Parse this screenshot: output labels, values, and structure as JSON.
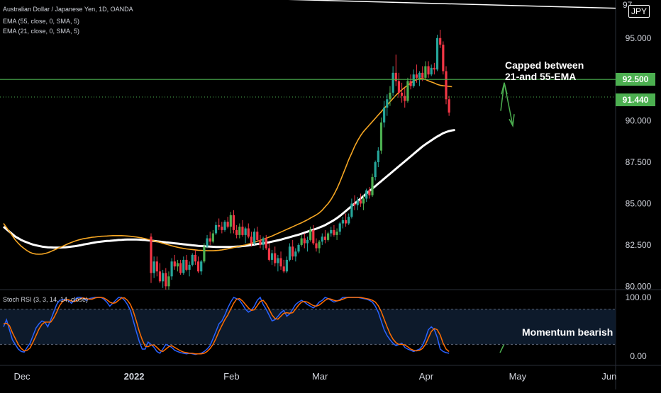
{
  "legend": {
    "main": "Australian Dollar / Japanese Yen, 1D, OANDA",
    "ema55": "EMA (55, close, 0, SMA, 5)",
    "ema21": "EMA (21, close, 0, SMA, 5)",
    "rsi": "Stoch RSI (3, 3, 14, 14, close)"
  },
  "currency_label": "JPY",
  "annotations": {
    "capped_line1": "Capped between",
    "capped_line2": "21-and 55-EMA",
    "momentum": "Momentum bearish"
  },
  "price_tags": {
    "resistance": "92.500",
    "last": "91.440"
  },
  "colors": {
    "up": "#26a69a",
    "up_alt": "#4caf50",
    "down": "#f23645",
    "ema21": "#f5a623",
    "ema55": "#ffffff",
    "rsi_k": "#2962ff",
    "rsi_d": "#ff6d00",
    "resistance": "#4caf50",
    "arrow": "#4caf50"
  },
  "chart_data": {
    "type": "candlestick",
    "price_axis": {
      "ticks": [
        "80.000",
        "82.500",
        "85.000",
        "87.500",
        "90.000",
        "92.500",
        "95.000"
      ],
      "top_partial_label": "97",
      "ylim": [
        79.8,
        97.3
      ]
    },
    "time_axis": {
      "ticks": [
        {
          "label": "Dec",
          "bar": 0
        },
        {
          "label": "2022",
          "bar": 38
        },
        {
          "label": "Feb",
          "bar": 71
        },
        {
          "label": "Mar",
          "bar": 101
        },
        {
          "label": "Apr",
          "bar": 137
        },
        {
          "label": "May",
          "bar": 168
        },
        {
          "label": "Jun",
          "bar": 199
        }
      ]
    },
    "series": [
      {
        "name": "EMA (55, close, 0, SMA, 5)",
        "color": "#ffffff",
        "values": [
          83.6,
          83.45,
          83.3,
          83.15,
          83.0,
          82.9,
          82.8,
          82.72,
          82.65,
          82.58,
          82.52,
          82.48,
          82.44,
          82.4,
          82.38,
          82.36,
          82.35,
          82.34,
          82.34,
          82.34,
          82.35,
          82.36,
          82.38,
          82.4,
          82.42,
          82.45,
          82.48,
          82.52,
          82.55,
          82.58,
          82.62,
          82.65,
          82.68,
          82.7,
          82.72,
          82.74,
          82.75,
          82.76,
          82.78,
          82.8,
          82.81,
          82.82,
          82.83,
          82.83,
          82.83,
          82.83,
          82.82,
          82.81,
          82.8,
          82.78,
          82.76,
          82.74,
          82.72,
          82.7,
          82.68,
          82.66,
          82.64,
          82.62,
          82.6,
          82.58,
          82.56,
          82.54,
          82.52,
          82.5,
          82.48,
          82.46,
          82.44,
          82.43,
          82.42,
          82.41,
          82.4,
          82.39,
          82.38,
          82.38,
          82.38,
          82.38,
          82.38,
          82.38,
          82.39,
          82.4,
          82.41,
          82.43,
          82.45,
          82.47,
          82.5,
          82.52,
          82.55,
          82.58,
          82.6,
          82.63,
          82.66,
          82.7,
          82.74,
          82.78,
          82.82,
          82.87,
          82.92,
          82.97,
          83.02,
          83.07,
          83.12,
          83.18,
          83.24,
          83.3,
          83.36,
          83.42,
          83.48,
          83.55,
          83.62,
          83.7,
          83.8,
          83.9,
          84.0,
          84.12,
          84.25,
          84.4,
          84.55,
          84.7,
          84.85,
          85.0,
          85.15,
          85.3,
          85.45,
          85.6,
          85.75,
          85.9,
          86.05,
          86.2,
          86.35,
          86.5,
          86.65,
          86.8,
          86.95,
          87.1,
          87.25,
          87.4,
          87.55,
          87.7,
          87.85,
          88.0,
          88.15,
          88.3,
          88.45,
          88.58,
          88.7,
          88.82,
          88.94,
          89.05,
          89.15,
          89.25,
          89.32,
          89.38,
          89.42,
          89.45
        ]
      },
      {
        "name": "EMA (21, close, 0, SMA, 5)",
        "color": "#f5a623",
        "values": [
          83.8,
          83.55,
          83.3,
          83.05,
          82.8,
          82.6,
          82.42,
          82.28,
          82.15,
          82.05,
          81.98,
          81.95,
          81.94,
          81.95,
          81.98,
          82.03,
          82.1,
          82.18,
          82.26,
          82.34,
          82.42,
          82.5,
          82.58,
          82.65,
          82.72,
          82.78,
          82.83,
          82.87,
          82.9,
          82.93,
          82.96,
          82.98,
          83.0,
          83.02,
          83.03,
          83.04,
          83.05,
          83.06,
          83.06,
          83.06,
          83.06,
          83.05,
          83.04,
          83.02,
          83.0,
          82.98,
          82.95,
          82.92,
          82.88,
          82.84,
          82.8,
          82.75,
          82.7,
          82.65,
          82.6,
          82.55,
          82.5,
          82.45,
          82.4,
          82.36,
          82.32,
          82.29,
          82.26,
          82.24,
          82.22,
          82.2,
          82.18,
          82.17,
          82.16,
          82.15,
          82.15,
          82.15,
          82.16,
          82.18,
          82.2,
          82.23,
          82.26,
          82.3,
          82.34,
          82.38,
          82.42,
          82.46,
          82.5,
          82.55,
          82.6,
          82.66,
          82.72,
          82.78,
          82.84,
          82.9,
          82.97,
          83.04,
          83.12,
          83.2,
          83.28,
          83.36,
          83.44,
          83.52,
          83.6,
          83.68,
          83.76,
          83.84,
          83.93,
          84.02,
          84.12,
          84.22,
          84.32,
          84.44,
          84.6,
          84.8,
          85.0,
          85.25,
          85.55,
          85.9,
          86.3,
          86.75,
          87.2,
          87.65,
          88.05,
          88.45,
          88.8,
          89.1,
          89.35,
          89.55,
          89.75,
          89.95,
          90.15,
          90.35,
          90.55,
          90.75,
          90.95,
          91.15,
          91.35,
          91.55,
          91.72,
          91.88,
          92.02,
          92.15,
          92.28,
          92.4,
          92.5,
          92.55,
          92.55,
          92.5,
          92.42,
          92.35,
          92.28,
          92.2,
          92.15,
          92.12,
          92.1,
          92.08,
          92.06
        ]
      },
      {
        "name": "Stoch RSI %K",
        "color": "#2962ff",
        "values": [
          50,
          62,
          45,
          28,
          20,
          12,
          8,
          7,
          15,
          22,
          35,
          48,
          55,
          60,
          58,
          50,
          62,
          75,
          88,
          95,
          96,
          97,
          95,
          90,
          95,
          100,
          100,
          99,
          95,
          98,
          99,
          100,
          100,
          100,
          97,
          92,
          85,
          90,
          95,
          100,
          100,
          95,
          88,
          78,
          60,
          42,
          25,
          12,
          12,
          24,
          20,
          15,
          8,
          5,
          12,
          20,
          18,
          15,
          10,
          8,
          6,
          5,
          4,
          5,
          4,
          3,
          4,
          5,
          8,
          12,
          18,
          30,
          42,
          55,
          60,
          70,
          82,
          92,
          100,
          98,
          95,
          88,
          80,
          75,
          78,
          85,
          95,
          100,
          88,
          80,
          70,
          60,
          62,
          68,
          74,
          78,
          68,
          72,
          80,
          88,
          92,
          95,
          92,
          88,
          85,
          82,
          86,
          92,
          95,
          100,
          98,
          95,
          92,
          94,
          96,
          100,
          100,
          100,
          100,
          100,
          100,
          99,
          98,
          97,
          95,
          92,
          85,
          75,
          60,
          45,
          35,
          28,
          22,
          18,
          20,
          22,
          15,
          12,
          10,
          8,
          10,
          12,
          18,
          30,
          45,
          50,
          45,
          32,
          12,
          8,
          6,
          5
        ]
      },
      {
        "name": "Stoch RSI %D",
        "color": "#ff6d00",
        "values": [
          55,
          56,
          52,
          40,
          30,
          20,
          13,
          9,
          10,
          14,
          24,
          35,
          46,
          54,
          58,
          58,
          58,
          65,
          75,
          86,
          93,
          96,
          96,
          94,
          93,
          95,
          98,
          99,
          98,
          97,
          97,
          99,
          100,
          100,
          99,
          96,
          92,
          90,
          91,
          95,
          99,
          99,
          95,
          88,
          76,
          60,
          42,
          28,
          17,
          16,
          19,
          19,
          15,
          10,
          8,
          12,
          16,
          18,
          15,
          12,
          9,
          7,
          6,
          5,
          5,
          4,
          4,
          4,
          5,
          8,
          13,
          20,
          30,
          42,
          52,
          62,
          70,
          80,
          90,
          97,
          98,
          94,
          88,
          82,
          78,
          79,
          86,
          93,
          95,
          89,
          80,
          70,
          64,
          63,
          68,
          73,
          74,
          73,
          74,
          80,
          87,
          92,
          93,
          92,
          89,
          86,
          85,
          87,
          91,
          95,
          98,
          97,
          95,
          94,
          95,
          97,
          99,
          100,
          100,
          100,
          100,
          100,
          99,
          98,
          97,
          95,
          92,
          86,
          76,
          63,
          50,
          38,
          29,
          23,
          20,
          20,
          19,
          16,
          12,
          10,
          9,
          10,
          13,
          20,
          31,
          42,
          47,
          45,
          36,
          22,
          12,
          8
        ]
      }
    ],
    "candles": [
      [
        83.0,
        83.2,
        80.2,
        80.8
      ],
      [
        80.8,
        81.8,
        80.5,
        81.5
      ],
      [
        81.5,
        81.8,
        80.6,
        80.9
      ],
      [
        80.9,
        81.4,
        80.2,
        80.3
      ],
      [
        80.3,
        81.0,
        79.9,
        80.8
      ],
      [
        80.8,
        81.1,
        79.8,
        80.0
      ],
      [
        80.0,
        80.9,
        79.8,
        80.6
      ],
      [
        80.6,
        81.7,
        80.4,
        81.5
      ],
      [
        81.5,
        81.9,
        81.0,
        81.2
      ],
      [
        81.2,
        81.6,
        80.9,
        81.4
      ],
      [
        81.4,
        81.6,
        80.7,
        80.8
      ],
      [
        80.8,
        81.8,
        80.7,
        81.6
      ],
      [
        81.6,
        81.9,
        80.9,
        81.0
      ],
      [
        81.0,
        81.5,
        80.6,
        81.3
      ],
      [
        81.3,
        82.0,
        81.2,
        81.9
      ],
      [
        81.9,
        82.2,
        81.3,
        81.5
      ],
      [
        81.5,
        81.8,
        80.8,
        80.9
      ],
      [
        80.9,
        81.6,
        80.7,
        81.5
      ],
      [
        81.5,
        82.6,
        81.4,
        82.4
      ],
      [
        82.4,
        83.1,
        82.3,
        82.9
      ],
      [
        82.9,
        83.3,
        82.5,
        82.7
      ],
      [
        82.7,
        83.4,
        82.6,
        83.2
      ],
      [
        83.2,
        83.9,
        83.1,
        83.7
      ],
      [
        83.7,
        84.1,
        83.4,
        83.6
      ],
      [
        83.6,
        83.9,
        83.2,
        83.4
      ],
      [
        83.4,
        84.0,
        83.3,
        83.9
      ],
      [
        83.9,
        84.2,
        83.5,
        83.6
      ],
      [
        83.6,
        84.5,
        83.2,
        84.3
      ],
      [
        84.3,
        84.6,
        83.2,
        83.4
      ],
      [
        83.4,
        83.7,
        82.9,
        83.1
      ],
      [
        83.1,
        83.8,
        82.9,
        83.6
      ],
      [
        83.6,
        84.0,
        83.0,
        83.1
      ],
      [
        83.1,
        83.6,
        82.6,
        83.5
      ],
      [
        83.5,
        83.8,
        82.9,
        83.0
      ],
      [
        83.0,
        83.3,
        82.4,
        82.6
      ],
      [
        82.6,
        83.5,
        82.5,
        83.3
      ],
      [
        83.3,
        83.6,
        82.7,
        82.8
      ],
      [
        82.8,
        83.1,
        82.3,
        82.5
      ],
      [
        82.5,
        83.0,
        82.2,
        82.9
      ],
      [
        82.9,
        83.1,
        82.2,
        82.3
      ],
      [
        82.3,
        82.6,
        81.5,
        81.6
      ],
      [
        81.6,
        82.2,
        81.3,
        82.0
      ],
      [
        82.0,
        82.4,
        81.2,
        81.4
      ],
      [
        81.4,
        81.9,
        80.9,
        81.7
      ],
      [
        81.7,
        82.1,
        81.0,
        81.2
      ],
      [
        81.2,
        81.6,
        80.8,
        80.9
      ],
      [
        80.9,
        81.8,
        80.8,
        81.6
      ],
      [
        81.6,
        82.6,
        81.5,
        82.4
      ],
      [
        82.4,
        82.8,
        81.6,
        81.8
      ],
      [
        81.8,
        82.3,
        81.5,
        82.1
      ],
      [
        82.1,
        82.6,
        82.0,
        82.5
      ],
      [
        82.5,
        83.1,
        82.4,
        82.9
      ],
      [
        82.9,
        83.2,
        82.3,
        82.6
      ],
      [
        82.6,
        83.0,
        82.1,
        82.8
      ],
      [
        82.8,
        83.6,
        82.7,
        83.4
      ],
      [
        83.4,
        83.7,
        82.5,
        82.6
      ],
      [
        82.6,
        82.9,
        82.1,
        82.3
      ],
      [
        82.3,
        82.8,
        82.0,
        82.7
      ],
      [
        82.7,
        83.2,
        82.5,
        83.0
      ],
      [
        83.0,
        83.4,
        82.6,
        82.8
      ],
      [
        82.8,
        83.3,
        82.7,
        83.2
      ],
      [
        83.2,
        83.6,
        83.0,
        83.4
      ],
      [
        83.4,
        83.7,
        83.0,
        83.1
      ],
      [
        83.1,
        83.5,
        82.8,
        83.3
      ],
      [
        83.3,
        83.9,
        83.1,
        83.8
      ],
      [
        83.8,
        84.2,
        83.5,
        84.0
      ],
      [
        84.0,
        84.4,
        83.6,
        83.8
      ],
      [
        83.8,
        84.4,
        83.7,
        84.2
      ],
      [
        84.2,
        85.3,
        84.1,
        85.0
      ],
      [
        85.0,
        85.5,
        84.6,
        84.9
      ],
      [
        84.9,
        85.4,
        84.6,
        85.2
      ],
      [
        85.2,
        85.6,
        84.8,
        85.0
      ],
      [
        85.0,
        85.5,
        84.6,
        85.3
      ],
      [
        85.3,
        85.9,
        85.1,
        85.8
      ],
      [
        85.8,
        86.0,
        85.3,
        85.5
      ],
      [
        85.5,
        86.8,
        85.4,
        86.6
      ],
      [
        86.6,
        87.6,
        86.4,
        87.5
      ],
      [
        87.5,
        88.4,
        87.2,
        88.2
      ],
      [
        88.2,
        90.2,
        88.0,
        89.9
      ],
      [
        89.9,
        91.2,
        89.6,
        90.8
      ],
      [
        90.8,
        91.6,
        90.3,
        91.3
      ],
      [
        91.3,
        92.1,
        90.9,
        91.7
      ],
      [
        91.7,
        93.3,
        91.5,
        92.9
      ],
      [
        92.9,
        94.0,
        92.1,
        92.4
      ],
      [
        92.4,
        92.9,
        91.4,
        91.7
      ],
      [
        91.7,
        92.3,
        91.1,
        91.5
      ],
      [
        91.5,
        92.0,
        90.8,
        91.2
      ],
      [
        91.2,
        92.6,
        91.1,
        92.4
      ],
      [
        92.4,
        92.8,
        91.9,
        92.1
      ],
      [
        92.1,
        93.1,
        92.0,
        92.8
      ],
      [
        92.8,
        93.4,
        92.3,
        92.6
      ],
      [
        92.6,
        93.0,
        92.1,
        92.9
      ],
      [
        92.9,
        93.3,
        92.4,
        92.6
      ],
      [
        92.6,
        93.6,
        92.5,
        93.3
      ],
      [
        93.3,
        93.6,
        92.6,
        92.8
      ],
      [
        92.8,
        93.4,
        92.7,
        93.2
      ],
      [
        93.2,
        93.5,
        92.8,
        93.1
      ],
      [
        93.1,
        95.2,
        93.0,
        95.0
      ],
      [
        95.0,
        95.5,
        94.4,
        94.6
      ],
      [
        94.6,
        94.8,
        92.8,
        93.0
      ],
      [
        93.0,
        93.3,
        91.0,
        91.3
      ],
      [
        91.3,
        91.5,
        90.3,
        90.5
      ]
    ]
  }
}
